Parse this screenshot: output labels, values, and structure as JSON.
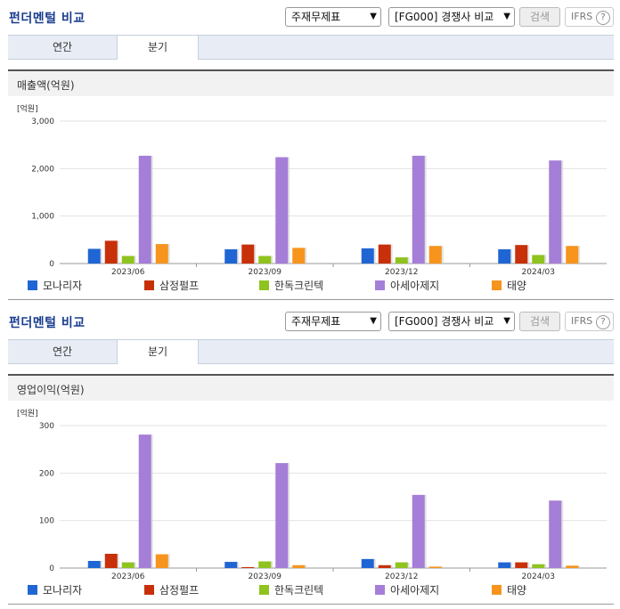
{
  "panels": [
    {
      "title": "펀더멘털 비교",
      "select1": "주재무제표",
      "select2": "[FG000] 경쟁사 비교",
      "search_btn": "검색",
      "ifrs": "IFRS",
      "help": "?",
      "tabs": [
        "연간",
        "분기"
      ],
      "active_tab": 1,
      "section_title": "매출액(억원)",
      "chart_data": {
        "type": "bar",
        "unit_label": "[억원]",
        "categories": [
          "2023/06",
          "2023/09",
          "2023/12",
          "2024/03"
        ],
        "yticks": [
          0,
          1000,
          2000,
          3000
        ],
        "ytick_labels": [
          "0",
          "1,000",
          "2,000",
          "3,000"
        ],
        "ylim": [
          0,
          3000
        ],
        "series": [
          {
            "name": "모나리자",
            "color": "#1f66d4",
            "values": [
              310,
              300,
              320,
              300
            ]
          },
          {
            "name": "삼정펄프",
            "color": "#c8300a",
            "values": [
              480,
              400,
              400,
              390
            ]
          },
          {
            "name": "한독크린텍",
            "color": "#8fc31f",
            "values": [
              160,
              160,
              130,
              180
            ]
          },
          {
            "name": "아세아제지",
            "color": "#a57ed8",
            "values": [
              2270,
              2240,
              2270,
              2170
            ]
          },
          {
            "name": "태양",
            "color": "#f7941d",
            "values": [
              410,
              330,
              370,
              370
            ]
          }
        ]
      }
    },
    {
      "title": "펀더멘털 비교",
      "select1": "주재무제표",
      "select2": "[FG000] 경쟁사 비교",
      "search_btn": "검색",
      "ifrs": "IFRS",
      "help": "?",
      "tabs": [
        "연간",
        "분기"
      ],
      "active_tab": 1,
      "section_title": "영업이익(억원)",
      "chart_data": {
        "type": "bar",
        "unit_label": "[억원]",
        "categories": [
          "2023/06",
          "2023/09",
          "2023/12",
          "2024/03"
        ],
        "yticks": [
          0,
          100,
          200,
          300
        ],
        "ytick_labels": [
          "0",
          "100",
          "200",
          "300"
        ],
        "ylim": [
          0,
          300
        ],
        "series": [
          {
            "name": "모나리자",
            "color": "#1f66d4",
            "values": [
              15,
              13,
              19,
              12
            ]
          },
          {
            "name": "삼정펄프",
            "color": "#c8300a",
            "values": [
              30,
              2,
              6,
              12
            ]
          },
          {
            "name": "한독크린텍",
            "color": "#8fc31f",
            "values": [
              12,
              14,
              12,
              8
            ]
          },
          {
            "name": "아세아제지",
            "color": "#a57ed8",
            "values": [
              281,
              221,
              154,
              142
            ]
          },
          {
            "name": "태양",
            "color": "#f7941d",
            "values": [
              29,
              6,
              3,
              5
            ]
          }
        ]
      }
    }
  ]
}
